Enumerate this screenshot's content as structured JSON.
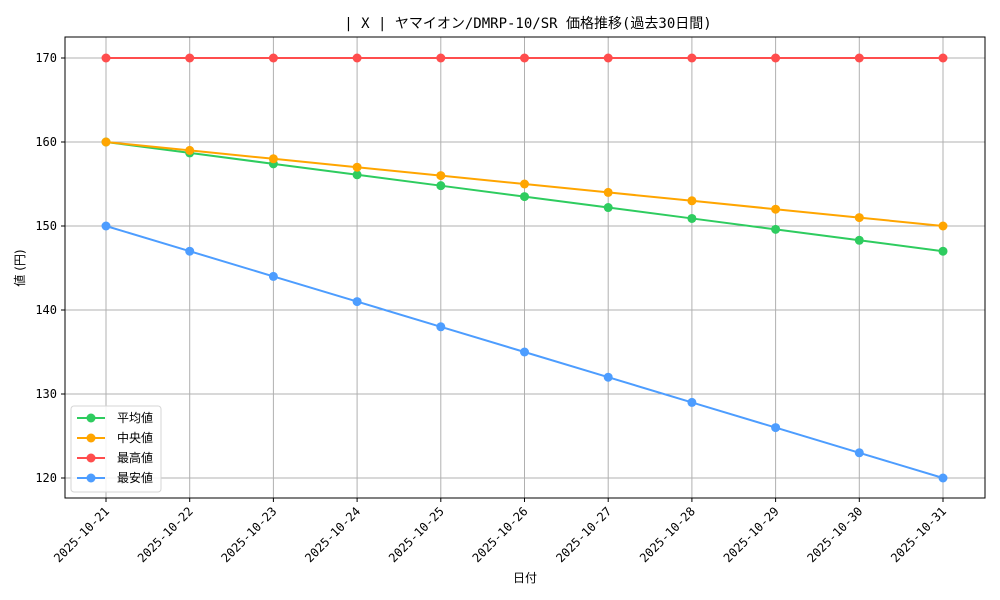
{
  "chart_data": {
    "type": "line",
    "title": "| X |  ヤマイオン/DMRP-10/SR 価格推移(過去30日間)",
    "xlabel": "日付",
    "ylabel": "値 (円)",
    "categories": [
      "2025-10-21",
      "2025-10-22",
      "2025-10-23",
      "2025-10-24",
      "2025-10-25",
      "2025-10-26",
      "2025-10-27",
      "2025-10-28",
      "2025-10-29",
      "2025-10-30",
      "2025-10-31"
    ],
    "yticks": [
      120,
      130,
      140,
      150,
      160,
      170
    ],
    "ylim": [
      117.5,
      172.5
    ],
    "grid": true,
    "legend_position": "lower left",
    "series": [
      {
        "name": "平均値",
        "color": "#2ecc5f",
        "values": [
          160.0,
          158.7,
          157.4,
          156.1,
          154.8,
          153.5,
          152.2,
          150.9,
          149.6,
          148.3,
          147.0
        ]
      },
      {
        "name": "中央値",
        "color": "#ffa500",
        "values": [
          160,
          159,
          158,
          157,
          156,
          155,
          154,
          153,
          152,
          151,
          150
        ]
      },
      {
        "name": "最高値",
        "color": "#ff4d4d",
        "values": [
          170,
          170,
          170,
          170,
          170,
          170,
          170,
          170,
          170,
          170,
          170
        ]
      },
      {
        "name": "最安値",
        "color": "#4d9dff",
        "values": [
          150,
          147,
          144,
          141,
          138,
          135,
          132,
          129,
          126,
          123,
          120
        ]
      }
    ]
  }
}
